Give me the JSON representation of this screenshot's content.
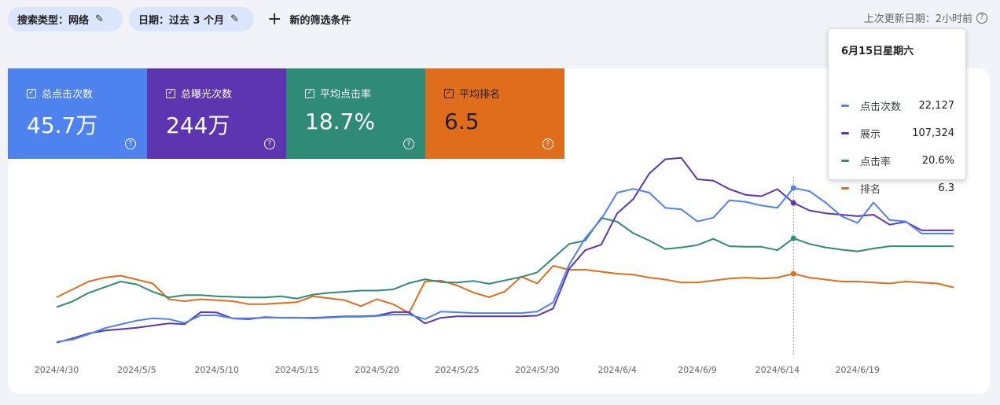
{
  "filters": {
    "search_type": "搜索类型：网络",
    "date": "日期：过去 3 个月",
    "add_filter": "新的筛选条件"
  },
  "last_updated": "上次更新日期：2小时前",
  "metrics": [
    {
      "label": "总点击次数",
      "value": "45.7万",
      "color": "#4e82ee"
    },
    {
      "label": "总曝光次数",
      "value": "244万",
      "color": "#5e35b1"
    },
    {
      "label": "平均点击率",
      "value": "18.7%",
      "color": "#2f8a76"
    },
    {
      "label": "平均排名",
      "value": "6.5",
      "color": "#e06d1b"
    }
  ],
  "tooltip": {
    "date": "6月15日星期六",
    "rows": [
      {
        "name": "点击次数",
        "value": "22,127"
      },
      {
        "name": "展示",
        "value": "107,324"
      },
      {
        "name": "点击率",
        "value": "20.6%"
      },
      {
        "name": "排名",
        "value": "6.3"
      }
    ]
  },
  "chart_data": {
    "type": "line",
    "x": [
      "2024/4/30",
      "2024/5/1",
      "2024/5/2",
      "2024/5/3",
      "2024/5/4",
      "2024/5/5",
      "2024/5/6",
      "2024/5/7",
      "2024/5/8",
      "2024/5/9",
      "2024/5/10",
      "2024/5/11",
      "2024/5/12",
      "2024/5/13",
      "2024/5/14",
      "2024/5/15",
      "2024/5/16",
      "2024/5/17",
      "2024/5/18",
      "2024/5/19",
      "2024/5/20",
      "2024/5/21",
      "2024/5/22",
      "2024/5/23",
      "2024/5/24",
      "2024/5/25",
      "2024/5/26",
      "2024/5/27",
      "2024/5/28",
      "2024/5/29",
      "2024/5/30",
      "2024/5/31",
      "2024/6/1",
      "2024/6/2",
      "2024/6/3",
      "2024/6/4",
      "2024/6/5",
      "2024/6/6",
      "2024/6/7",
      "2024/6/8",
      "2024/6/9",
      "2024/6/10",
      "2024/6/11",
      "2024/6/12",
      "2024/6/13",
      "2024/6/14",
      "2024/6/15",
      "2024/6/16",
      "2024/6/17",
      "2024/6/18",
      "2024/6/19",
      "2024/6/20",
      "2024/6/21",
      "2024/6/22",
      "2024/6/23",
      "2024/6/24",
      "2024/6/25"
    ],
    "x_tick_labels": [
      "2024/4/30",
      "2024/5/5",
      "2024/5/10",
      "2024/5/15",
      "2024/5/20",
      "2024/5/25",
      "2024/5/30",
      "2024/6/4",
      "2024/6/9",
      "2024/6/14",
      "2024/6/19"
    ],
    "highlight_date": "2024/6/15",
    "grid": false,
    "series": [
      {
        "name": "点击次数",
        "color": "#4e82ee",
        "values": [
          1800,
          2100,
          2800,
          3600,
          4100,
          4600,
          4900,
          4800,
          4300,
          5300,
          5300,
          4900,
          4900,
          5000,
          5000,
          5000,
          4900,
          5000,
          5100,
          5100,
          5200,
          5400,
          5400,
          4800,
          5800,
          5700,
          5600,
          5600,
          5600,
          5600,
          5800,
          7000,
          12000,
          15500,
          18000,
          21500,
          22000,
          21500,
          19500,
          19300,
          17700,
          18200,
          20500,
          20300,
          19800,
          19500,
          22127,
          21700,
          20200,
          18400,
          17500,
          20200,
          17900,
          17700,
          16100,
          16100,
          16100
        ]
      },
      {
        "name": "展示",
        "color": "#5e35b1",
        "values": [
          9000,
          12000,
          15500,
          17500,
          18500,
          19500,
          21000,
          22500,
          22000,
          30500,
          30200,
          26000,
          25500,
          27000,
          26500,
          26500,
          26500,
          27000,
          27500,
          27500,
          28000,
          30500,
          30500,
          22500,
          26500,
          27500,
          27500,
          27500,
          27500,
          27500,
          28000,
          33000,
          61000,
          74000,
          78000,
          100000,
          110000,
          128000,
          138000,
          139000,
          124000,
          123000,
          117000,
          113000,
          112000,
          117000,
          107324,
          102000,
          100000,
          99000,
          98000,
          99000,
          92000,
          94000,
          88000,
          88000,
          88000
        ]
      },
      {
        "name": "点击率",
        "color": "#2f8a76",
        "values": [
          8.5,
          9.5,
          11.0,
          12.0,
          13.0,
          12.5,
          11.2,
          10.2,
          10.6,
          10.6,
          10.4,
          10.3,
          10.2,
          10.2,
          10.4,
          10.0,
          10.7,
          11.0,
          11.2,
          11.4,
          11.4,
          11.6,
          12.7,
          13.4,
          12.9,
          12.8,
          13.1,
          12.6,
          13.2,
          13.8,
          14.6,
          17.1,
          19.6,
          20.2,
          24.2,
          23.5,
          21.5,
          20.2,
          18.7,
          19.0,
          19.4,
          20.5,
          19.2,
          19.1,
          19.1,
          18.5,
          20.6,
          19.6,
          19.0,
          18.6,
          18.3,
          18.8,
          19.2,
          19.2,
          19.2,
          19.2,
          19.2
        ]
      },
      {
        "name": "排名",
        "color": "#e06d1b",
        "values": [
          7.5,
          7.1,
          6.7,
          6.5,
          6.4,
          6.6,
          6.8,
          7.6,
          7.7,
          7.6,
          7.65,
          7.7,
          7.85,
          7.85,
          7.8,
          7.75,
          7.45,
          7.55,
          7.65,
          7.95,
          7.6,
          7.85,
          8.3,
          6.7,
          6.65,
          6.9,
          7.25,
          7.5,
          7.2,
          6.45,
          6.8,
          5.9,
          6.1,
          6.1,
          6.2,
          6.3,
          6.35,
          6.5,
          6.6,
          6.75,
          6.75,
          6.65,
          6.55,
          6.5,
          6.55,
          6.5,
          6.3,
          6.5,
          6.6,
          6.7,
          6.7,
          6.75,
          6.8,
          6.7,
          6.75,
          6.8,
          7.0
        ]
      }
    ]
  }
}
